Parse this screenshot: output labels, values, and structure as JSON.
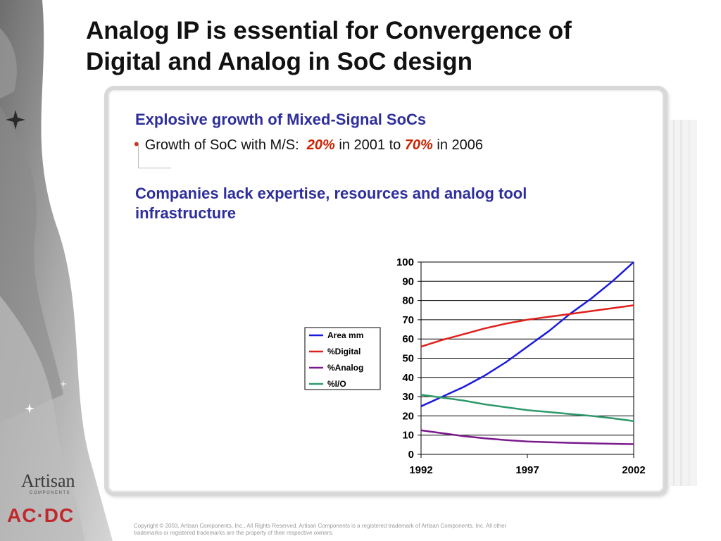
{
  "slide": {
    "title_line1": "Analog IP is essential for Convergence of",
    "title_line2": "Digital and Analog in SoC design"
  },
  "content": {
    "heading1": "Explosive growth of Mixed-Signal SoCs",
    "bullet_prefix": "Growth of SoC with M/S:",
    "bullet_value1": "20%",
    "bullet_middle": "in 2001 to",
    "bullet_value2": "70%",
    "bullet_suffix": "in 2006",
    "heading2": "Companies lack expertise, resources and analog tool infrastructure"
  },
  "chart_data": {
    "type": "line",
    "title": "",
    "xlabel": "",
    "ylabel": "",
    "x": [
      1992,
      1993,
      1994,
      1995,
      1996,
      1997,
      1998,
      1999,
      2000,
      2001,
      2002
    ],
    "xticks": [
      "1992",
      "1997",
      "2002"
    ],
    "xlim": [
      1992,
      2002
    ],
    "ylim": [
      0,
      100
    ],
    "yticks": [
      "0",
      "10",
      "20",
      "30",
      "40",
      "50",
      "60",
      "70",
      "80",
      "90",
      "100"
    ],
    "grid": true,
    "legend_position": "left",
    "series": [
      {
        "name": "Area mm",
        "color": "#1a1adf",
        "values": [
          25,
          30,
          35,
          41,
          48,
          56,
          64,
          73,
          81,
          90,
          100
        ]
      },
      {
        "name": "%Digital",
        "color": "#e0201a",
        "values": [
          56,
          59.5,
          62.5,
          65.5,
          68,
          70,
          71.5,
          73,
          74.5,
          76,
          77.5
        ]
      },
      {
        "name": "%Analog",
        "color": "#7a1a8c",
        "values": [
          12.5,
          11,
          9.5,
          8.3,
          7.4,
          6.7,
          6.3,
          6,
          5.7,
          5.5,
          5.3
        ]
      },
      {
        "name": "%I/O",
        "color": "#2e9a6a",
        "values": [
          31,
          29.5,
          28,
          26,
          24.5,
          23,
          22,
          21,
          20,
          18.8,
          17.3
        ]
      }
    ]
  },
  "footer": {
    "copyright": "Copyright © 2003, Artisan Components, Inc., All Rights Reserved. Artisan Components is a registered trademark of Artisan Components, Inc. All other trademarks or registered trademarks are the property of their respective owners."
  },
  "logos": {
    "artisan": "Artisan",
    "artisan_sub": "COMPONENTS",
    "acdc": "AC·DC"
  }
}
